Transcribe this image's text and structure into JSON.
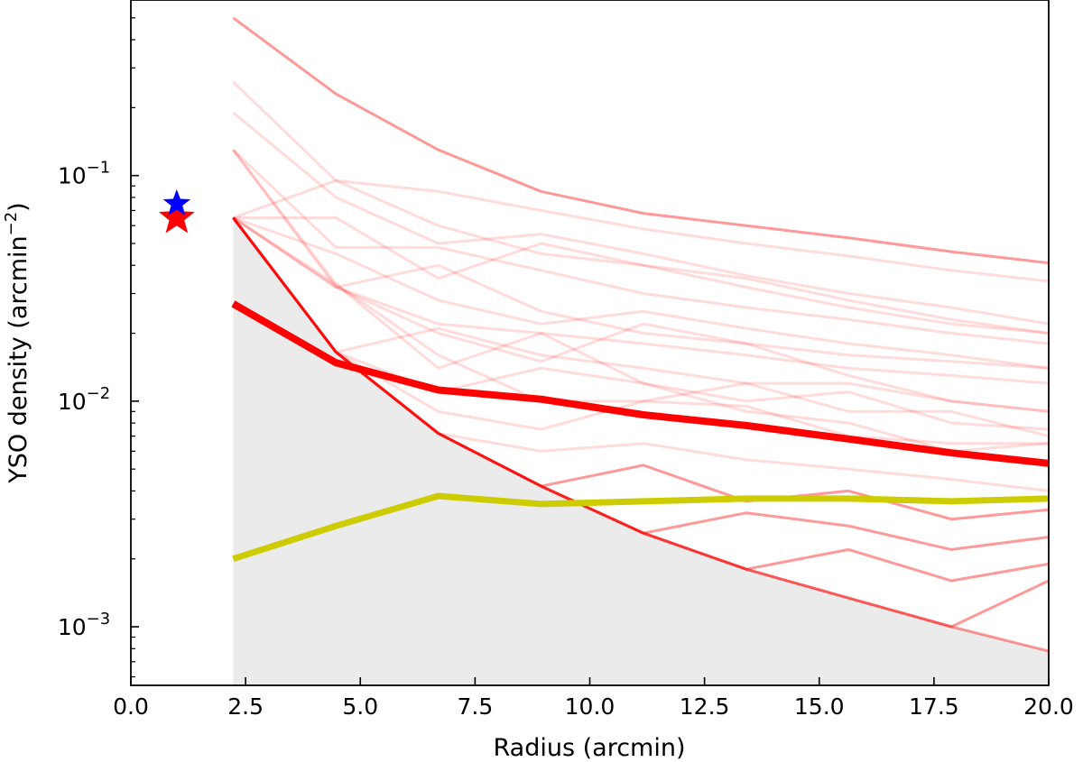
{
  "chart_data": {
    "type": "line",
    "xlabel": "Radius (arcmin)",
    "ylabel": "YSO density (arcmin",
    "ylabel_exponent": "−2",
    "ylabel_suffix": ")",
    "xlim": [
      0.0,
      20.0
    ],
    "ylim": [
      0.00055,
      0.6
    ],
    "yscale": "log",
    "grid": false,
    "x_ticks": [
      {
        "value": 0.0,
        "label": "0.0"
      },
      {
        "value": 2.5,
        "label": "2.5"
      },
      {
        "value": 5.0,
        "label": "5.0"
      },
      {
        "value": 7.5,
        "label": "7.5"
      },
      {
        "value": 10.0,
        "label": "10.0"
      },
      {
        "value": 12.5,
        "label": "12.5"
      },
      {
        "value": 15.0,
        "label": "15.0"
      },
      {
        "value": 17.5,
        "label": "17.5"
      },
      {
        "value": 20.0,
        "label": "20.0"
      }
    ],
    "y_major_ticks": [
      {
        "value": 0.001,
        "base": "10",
        "exponent": "−3"
      },
      {
        "value": 0.01,
        "base": "10",
        "exponent": "−2"
      },
      {
        "value": 0.1,
        "base": "10",
        "exponent": "−1"
      }
    ],
    "y_minor_ticks": [
      0.0006,
      0.0007,
      0.0008,
      0.0009,
      0.002,
      0.003,
      0.004,
      0.005,
      0.006,
      0.007,
      0.008,
      0.009,
      0.02,
      0.03,
      0.04,
      0.05,
      0.06,
      0.07,
      0.08,
      0.09,
      0.2,
      0.3,
      0.4,
      0.5
    ],
    "x": [
      2.23,
      4.47,
      6.7,
      8.94,
      11.17,
      13.41,
      15.64,
      17.88,
      20.0
    ],
    "shaded_region": {
      "color": "#ebebeb",
      "upper": [
        0.065,
        0.0165,
        0.0072,
        0.0042,
        0.0026,
        0.0018,
        0.00134,
        0.001,
        0.00078
      ]
    },
    "colors": {
      "red": "#ff0000",
      "yellow": "#cccc00",
      "blue": "#0000ff",
      "shade": "#ebebeb"
    },
    "individual_series": [
      {
        "values": [
          0.5,
          0.23,
          0.13,
          0.085,
          0.068,
          0.06,
          0.053,
          0.046,
          0.041
        ]
      },
      {
        "values": [
          0.26,
          0.095,
          0.085,
          0.07,
          0.058,
          0.05,
          0.044,
          0.038,
          0.034
        ]
      },
      {
        "values": [
          0.19,
          0.08,
          0.05,
          0.055,
          0.045,
          0.036,
          0.03,
          0.026,
          0.022
        ]
      },
      {
        "values": [
          0.13,
          0.048,
          0.048,
          0.038,
          0.03,
          0.026,
          0.023,
          0.02,
          0.018
        ]
      },
      {
        "values": [
          0.065,
          0.095,
          0.06,
          0.045,
          0.04,
          0.035,
          0.028,
          0.023,
          0.02
        ]
      },
      {
        "values": [
          0.065,
          0.065,
          0.035,
          0.05,
          0.04,
          0.032,
          0.026,
          0.022,
          0.02
        ]
      },
      {
        "values": [
          0.065,
          0.045,
          0.028,
          0.022,
          0.025,
          0.021,
          0.018,
          0.016,
          0.014
        ]
      },
      {
        "values": [
          0.065,
          0.032,
          0.04,
          0.025,
          0.02,
          0.018,
          0.016,
          0.015,
          0.014
        ]
      },
      {
        "values": [
          0.13,
          0.032,
          0.022,
          0.02,
          0.018,
          0.016,
          0.014,
          0.013,
          0.012
        ]
      },
      {
        "values": [
          0.065,
          0.032,
          0.02,
          0.015,
          0.022,
          0.018,
          0.013,
          0.01,
          0.009
        ]
      },
      {
        "values": [
          0.065,
          0.0165,
          0.021,
          0.016,
          0.014,
          0.012,
          0.012,
          0.01,
          0.009
        ]
      },
      {
        "values": [
          0.13,
          0.033,
          0.014,
          0.02,
          0.012,
          0.01,
          0.011,
          0.008,
          0.0075
        ]
      },
      {
        "values": [
          0.065,
          0.033,
          0.016,
          0.01,
          0.01,
          0.012,
          0.009,
          0.009,
          0.007
        ]
      },
      {
        "values": [
          0.065,
          0.0165,
          0.011,
          0.014,
          0.012,
          0.009,
          0.008,
          0.006,
          0.0065
        ]
      },
      {
        "values": [
          0.065,
          0.0165,
          0.009,
          0.0075,
          0.01,
          0.0095,
          0.007,
          0.0065,
          0.0065
        ]
      },
      {
        "values": [
          0.065,
          0.0165,
          0.0072,
          0.006,
          0.0065,
          0.0055,
          0.005,
          0.0045,
          0.004
        ]
      },
      {
        "values": [
          0.065,
          0.0165,
          0.0072,
          0.0042,
          0.0052,
          0.0036,
          0.004,
          0.003,
          0.0033
        ]
      },
      {
        "values": [
          0.065,
          0.0165,
          0.0072,
          0.0042,
          0.0026,
          0.0032,
          0.0028,
          0.0022,
          0.0025
        ]
      },
      {
        "values": [
          0.065,
          0.0165,
          0.0072,
          0.0042,
          0.0026,
          0.0018,
          0.0022,
          0.0016,
          0.0019
        ]
      },
      {
        "values": [
          0.065,
          0.0165,
          0.0072,
          0.0042,
          0.0026,
          0.0018,
          0.00134,
          0.001,
          0.0016
        ]
      },
      {
        "values": [
          0.065,
          0.0165,
          0.0072,
          0.0042,
          0.0026,
          0.0018,
          0.00134,
          0.001,
          0.00078
        ]
      }
    ],
    "highlight_series": [
      0,
      16,
      17,
      18,
      19,
      20
    ],
    "mean_series": {
      "values": [
        0.027,
        0.0148,
        0.0112,
        0.0102,
        0.0087,
        0.0078,
        0.0068,
        0.0059,
        0.0053
      ]
    },
    "yellow_series": {
      "values": [
        0.002,
        0.0028,
        0.0038,
        0.0035,
        0.0036,
        0.0037,
        0.0037,
        0.0036,
        0.0037
      ]
    },
    "markers": [
      {
        "x": 1.0,
        "y": 0.075,
        "color": "#0000ff",
        "shape": "star",
        "size": "small"
      },
      {
        "x": 1.0,
        "y": 0.065,
        "color": "#ff0000",
        "shape": "star",
        "size": "large"
      }
    ]
  }
}
